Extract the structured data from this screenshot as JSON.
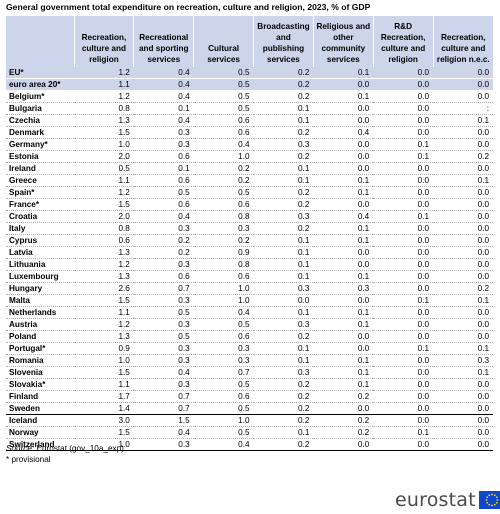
{
  "title": "General government total expenditure on recreation, culture and religion, 2023, % of GDP",
  "columns": [
    "",
    "Recreation, culture and religion",
    "Recreational and sporting services",
    "Cultural services",
    "Broadcasting and publishing services",
    "Religious and other community services",
    "R&D Recreation, culture and religion",
    "Recreation, culture and religion n.e.c."
  ],
  "rows": [
    {
      "country": "EU*",
      "values": [
        "1.2",
        "0.4",
        "0.5",
        "0.2",
        "0.1",
        "0.0",
        "0.0"
      ],
      "aggregate": true
    },
    {
      "country": "euro area 20*",
      "values": [
        "1.1",
        "0.4",
        "0.5",
        "0.2",
        "0.0",
        "0.0",
        "0.0"
      ],
      "aggregate": true
    },
    {
      "country": "Belgium*",
      "values": [
        "1.2",
        "0.4",
        "0.5",
        "0.2",
        "0.1",
        "0.0",
        "0.0"
      ]
    },
    {
      "country": "Bulgaria",
      "values": [
        "0.8",
        "0.1",
        "0.5",
        "0.1",
        "0.0",
        "0.0",
        ":"
      ]
    },
    {
      "country": "Czechia",
      "values": [
        "1.3",
        "0.4",
        "0.6",
        "0.1",
        "0.0",
        "0.0",
        "0.1"
      ]
    },
    {
      "country": "Denmark",
      "values": [
        "1.5",
        "0.3",
        "0.6",
        "0.2",
        "0.4",
        "0.0",
        "0.0"
      ]
    },
    {
      "country": "Germany*",
      "values": [
        "1.0",
        "0.3",
        "0.4",
        "0.3",
        "0.0",
        "0.1",
        "0.0"
      ]
    },
    {
      "country": "Estonia",
      "values": [
        "2.0",
        "0.6",
        "1.0",
        "0.2",
        "0.0",
        "0.1",
        "0.2"
      ]
    },
    {
      "country": "Ireland",
      "values": [
        "0.5",
        "0.1",
        "0.2",
        "0.1",
        "0.0",
        "0.0",
        "0.0"
      ]
    },
    {
      "country": "Greece",
      "values": [
        "1.1",
        "0.6",
        "0.2",
        "0.1",
        "0.1",
        "0.0",
        "0.1"
      ]
    },
    {
      "country": "Spain*",
      "values": [
        "1.2",
        "0.5",
        "0.5",
        "0.2",
        "0.1",
        "0.0",
        "0.0"
      ]
    },
    {
      "country": "France*",
      "values": [
        "1.5",
        "0.6",
        "0.6",
        "0.2",
        "0.0",
        "0.0",
        "0.0"
      ]
    },
    {
      "country": "Croatia",
      "values": [
        "2.0",
        "0.4",
        "0.8",
        "0.3",
        "0.4",
        "0.1",
        "0.0"
      ]
    },
    {
      "country": "Italy",
      "values": [
        "0.8",
        "0.3",
        "0.3",
        "0.2",
        "0.1",
        "0.0",
        "0.0"
      ]
    },
    {
      "country": "Cyprus",
      "values": [
        "0.6",
        "0.2",
        "0.2",
        "0.1",
        "0.1",
        "0.0",
        "0.0"
      ]
    },
    {
      "country": "Latvia",
      "values": [
        "1.3",
        "0.2",
        "0.9",
        "0.1",
        "0.0",
        "0.0",
        "0.0"
      ]
    },
    {
      "country": "Lithuania",
      "values": [
        "1.2",
        "0.3",
        "0.8",
        "0.1",
        "0.0",
        "0.0",
        "0.0"
      ]
    },
    {
      "country": "Luxembourg",
      "values": [
        "1.3",
        "0.6",
        "0.6",
        "0.1",
        "0.1",
        "0.0",
        "0.0"
      ]
    },
    {
      "country": "Hungary",
      "values": [
        "2.6",
        "0.7",
        "1.0",
        "0.3",
        "0.3",
        "0.0",
        "0.2"
      ]
    },
    {
      "country": "Malta",
      "values": [
        "1.5",
        "0.3",
        "1.0",
        "0.0",
        "0.0",
        "0.1",
        "0.1"
      ]
    },
    {
      "country": "Netherlands",
      "values": [
        "1.1",
        "0.5",
        "0.4",
        "0.1",
        "0.1",
        "0.0",
        "0.0"
      ]
    },
    {
      "country": "Austria",
      "values": [
        "1.2",
        "0.3",
        "0.5",
        "0.3",
        "0.1",
        "0.0",
        "0.0"
      ]
    },
    {
      "country": "Poland",
      "values": [
        "1.3",
        "0.5",
        "0.6",
        "0.2",
        "0.0",
        "0.0",
        "0.0"
      ]
    },
    {
      "country": "Portugal*",
      "values": [
        "0.9",
        "0.3",
        "0.3",
        "0.1",
        "0.0",
        "0.1",
        "0.1"
      ]
    },
    {
      "country": "Romania",
      "values": [
        "1.0",
        "0.3",
        "0.3",
        "0.1",
        "0.1",
        "0.0",
        "0.3"
      ]
    },
    {
      "country": "Slovenia",
      "values": [
        "1.5",
        "0.4",
        "0.7",
        "0.3",
        "0.1",
        "0.0",
        "0.1"
      ]
    },
    {
      "country": "Slovakia*",
      "values": [
        "1.1",
        "0.3",
        "0.5",
        "0.2",
        "0.1",
        "0.0",
        "0.0"
      ]
    },
    {
      "country": "Finland",
      "values": [
        "1.7",
        "0.7",
        "0.6",
        "0.2",
        "0.2",
        "0.0",
        "0.0"
      ]
    },
    {
      "country": "Sweden",
      "values": [
        "1.4",
        "0.7",
        "0.5",
        "0.2",
        "0.0",
        "0.0",
        "0.0"
      ]
    },
    {
      "country": "Iceland",
      "values": [
        "3.0",
        "1.5",
        "1.0",
        "0.2",
        "0.2",
        "0.0",
        "0.0"
      ],
      "group_start": true
    },
    {
      "country": "Norway",
      "values": [
        "1.5",
        "0.4",
        "0.5",
        "0.1",
        "0.2",
        "0.1",
        "0.0"
      ]
    },
    {
      "country": "Switzerland",
      "values": [
        "1.0",
        "0.3",
        "0.4",
        "0.2",
        "0.0",
        "0.0",
        "0.0"
      ]
    }
  ],
  "source_label": "Source:",
  "source_text": "Eurostat (gov_10a_exp)",
  "note": "* provisional",
  "logo_text": "eurostat",
  "colors": {
    "header_bg": "#cdd5eb",
    "flag_blue": "#0e47cb",
    "flag_star": "#ffd617"
  }
}
